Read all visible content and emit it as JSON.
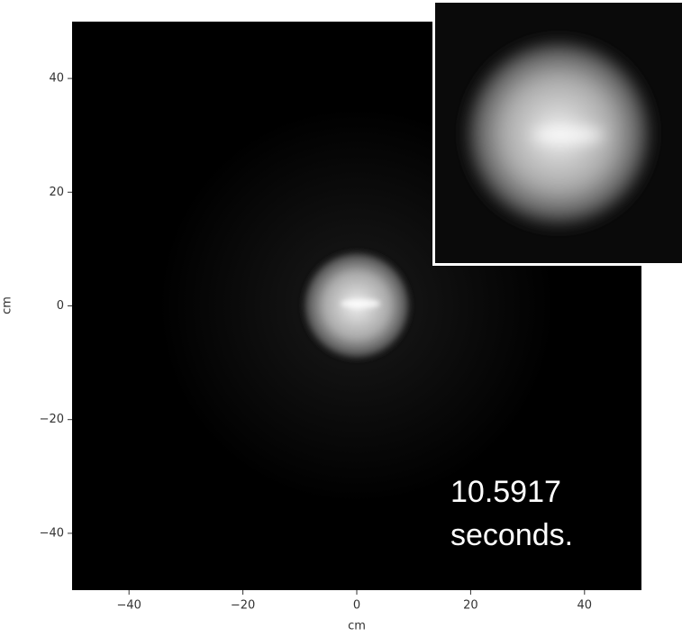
{
  "chart_data": {
    "type": "image",
    "xlabel": "cm",
    "ylabel": "cm",
    "xlim": [
      -50,
      50
    ],
    "ylim": [
      -50,
      50
    ],
    "xticks": [
      {
        "value": -40,
        "label": "−40"
      },
      {
        "value": -20,
        "label": "−20"
      },
      0,
      20,
      40
    ],
    "yticks": [
      {
        "value": -40,
        "label": "−40"
      },
      {
        "value": -20,
        "label": "−20"
      },
      0,
      20,
      40
    ],
    "annotation": [
      "10.5917",
      "seconds."
    ]
  }
}
